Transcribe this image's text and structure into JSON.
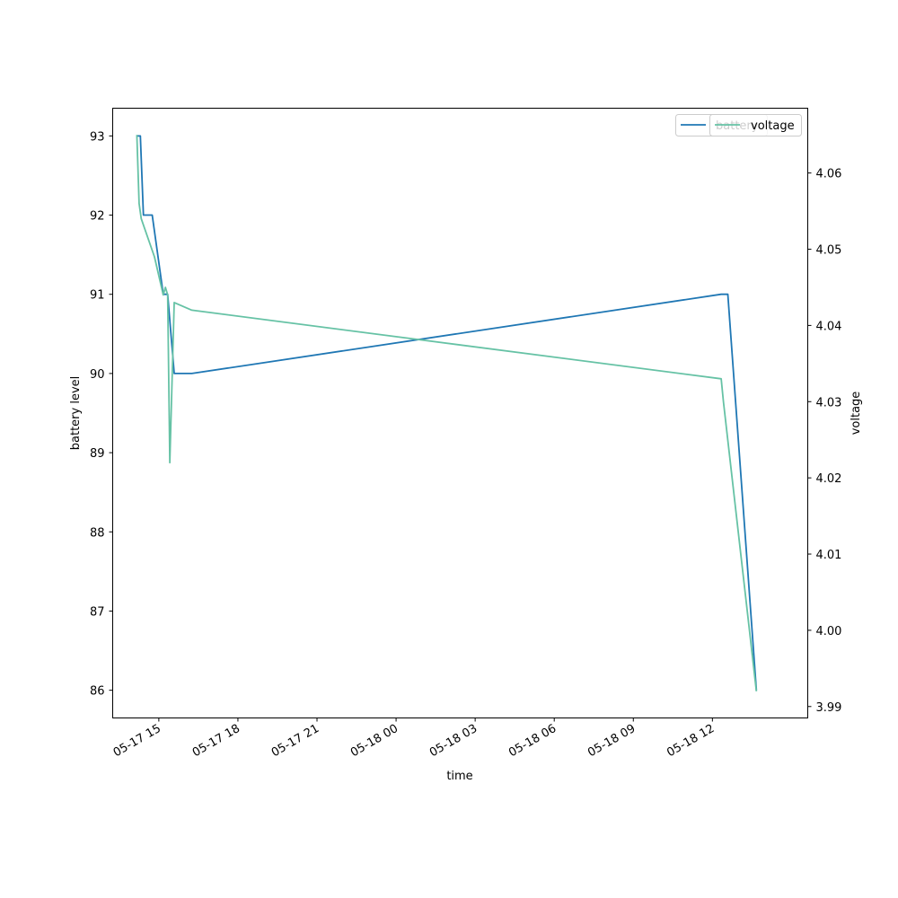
{
  "chart_data": {
    "type": "line",
    "xlabel": "time",
    "ylabel_left": "battery level",
    "ylabel_right": "voltage",
    "x_ticks": [
      "05-17 15",
      "05-17 18",
      "05-17 21",
      "05-18 00",
      "05-18 03",
      "05-18 06",
      "05-18 09",
      "05-18 12"
    ],
    "xlim": [
      "2023-05-17 13:15",
      "2023-05-18 15:37"
    ],
    "ylim_left": [
      85.65,
      93.35
    ],
    "yticks_left": [
      86,
      87,
      88,
      89,
      90,
      91,
      92,
      93
    ],
    "ylim_right": [
      3.9885,
      4.0685
    ],
    "yticks_right": [
      "3.99",
      "4.00",
      "4.01",
      "4.02",
      "4.03",
      "4.04",
      "4.05",
      "4.06"
    ],
    "grid": false,
    "legend_placement": "top-right",
    "series": [
      {
        "name": "battery",
        "axis": "left",
        "color": "#1f77b4",
        "points": [
          {
            "x": "2023-05-17 14:10",
            "y": 93
          },
          {
            "x": "2023-05-17 14:18",
            "y": 93
          },
          {
            "x": "2023-05-17 14:25",
            "y": 92
          },
          {
            "x": "2023-05-17 14:35",
            "y": 92
          },
          {
            "x": "2023-05-17 14:45",
            "y": 92
          },
          {
            "x": "2023-05-17 15:10",
            "y": 91
          },
          {
            "x": "2023-05-17 15:20",
            "y": 91
          },
          {
            "x": "2023-05-17 15:35",
            "y": 90
          },
          {
            "x": "2023-05-17 16:15",
            "y": 90
          },
          {
            "x": "2023-05-18 12:20",
            "y": 91
          },
          {
            "x": "2023-05-18 12:35",
            "y": 91
          },
          {
            "x": "2023-05-18 13:40",
            "y": 86
          }
        ]
      },
      {
        "name": "voltage",
        "axis": "right",
        "color": "#66c2a5",
        "points": [
          {
            "x": "2023-05-17 14:10",
            "y": 4.065
          },
          {
            "x": "2023-05-17 14:15",
            "y": 4.056
          },
          {
            "x": "2023-05-17 14:20",
            "y": 4.054
          },
          {
            "x": "2023-05-17 14:50",
            "y": 4.049
          },
          {
            "x": "2023-05-17 15:10",
            "y": 4.044
          },
          {
            "x": "2023-05-17 15:15",
            "y": 4.045
          },
          {
            "x": "2023-05-17 15:20",
            "y": 4.044
          },
          {
            "x": "2023-05-17 15:25",
            "y": 4.022
          },
          {
            "x": "2023-05-17 15:35",
            "y": 4.043
          },
          {
            "x": "2023-05-17 16:15",
            "y": 4.042
          },
          {
            "x": "2023-05-18 12:20",
            "y": 4.033
          },
          {
            "x": "2023-05-18 12:25",
            "y": 4.03
          },
          {
            "x": "2023-05-18 13:40",
            "y": 3.992
          }
        ]
      }
    ]
  },
  "legend": {
    "left_label": "battery",
    "right_label": "voltage",
    "left_color": "#1f77b4",
    "right_color": "#66c2a5"
  }
}
